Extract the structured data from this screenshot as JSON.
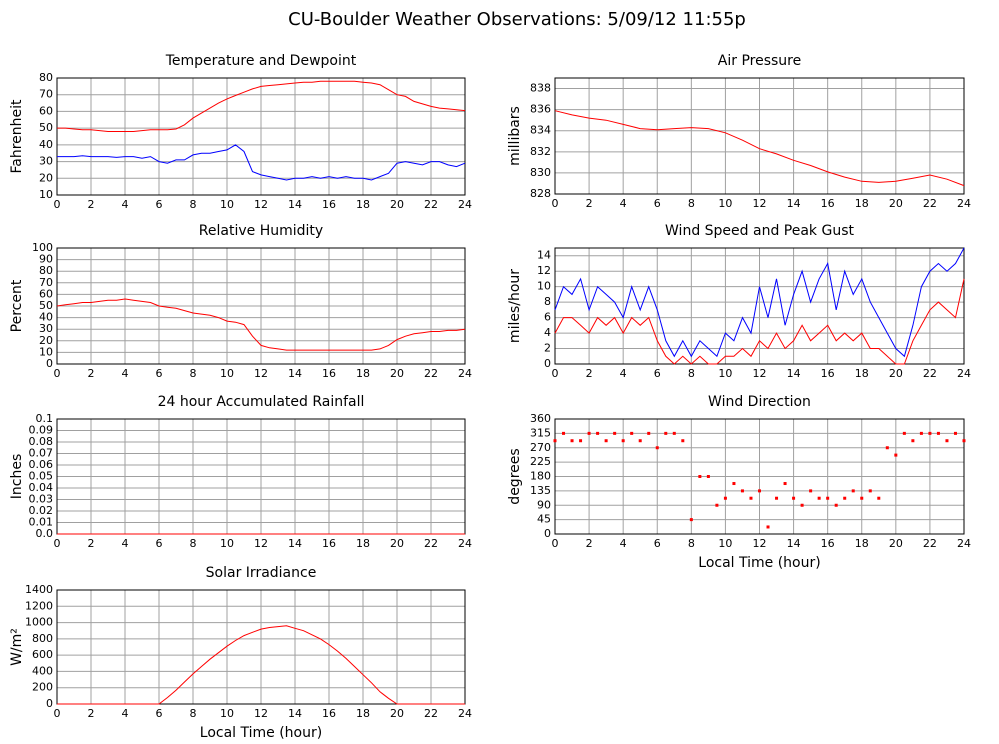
{
  "title": "CU-Boulder Weather Observations: 5/09/12 11:55p",
  "chart_data": [
    {
      "type": "line",
      "title": "Temperature and Dewpoint",
      "ylabel": "Fahrenheit",
      "x": [
        0,
        0.5,
        1,
        1.5,
        2,
        2.5,
        3,
        3.5,
        4,
        4.5,
        5,
        5.5,
        6,
        6.5,
        7,
        7.5,
        8,
        8.5,
        9,
        9.5,
        10,
        10.5,
        11,
        11.5,
        12,
        12.5,
        13,
        13.5,
        14,
        14.5,
        15,
        15.5,
        16,
        16.5,
        17,
        17.5,
        18,
        18.5,
        19,
        19.5,
        20,
        20.5,
        21,
        21.5,
        22,
        22.5,
        23,
        23.5,
        24
      ],
      "series": [
        {
          "color": "#ff0000",
          "values": [
            50,
            50,
            49.5,
            49,
            49,
            48.5,
            48,
            48,
            48,
            48,
            48.5,
            49,
            49,
            49,
            49.5,
            52,
            56,
            59,
            62,
            65,
            67.5,
            69.5,
            71.5,
            73.5,
            75,
            75.5,
            76,
            76.5,
            77,
            77.5,
            77.5,
            78,
            78,
            78,
            78,
            78,
            77.5,
            77,
            76,
            73,
            70,
            69,
            66,
            64.5,
            63,
            62,
            61.5,
            61,
            60.5
          ]
        },
        {
          "color": "#0000ff",
          "values": [
            33,
            33,
            33,
            33.5,
            33,
            33,
            33,
            32.5,
            33,
            33,
            32,
            33,
            30,
            29,
            31,
            31,
            34,
            35,
            35,
            36,
            37,
            40,
            36,
            24,
            22,
            21,
            20,
            19,
            20,
            20,
            21,
            20,
            21,
            20,
            21,
            20,
            20,
            19,
            21,
            23,
            29,
            30,
            29,
            28,
            30,
            30,
            28,
            27,
            29
          ]
        }
      ],
      "xlim": [
        0,
        24
      ],
      "xticks": [
        0,
        2,
        4,
        6,
        8,
        10,
        12,
        14,
        16,
        18,
        20,
        22,
        24
      ],
      "ylim": [
        10,
        80
      ],
      "yticks": [
        10,
        20,
        30,
        40,
        50,
        60,
        70,
        80
      ],
      "grid": true
    },
    {
      "type": "line",
      "title": "Air Pressure",
      "ylabel": "millibars",
      "x": [
        0,
        1,
        2,
        3,
        4,
        5,
        6,
        7,
        8,
        9,
        10,
        11,
        12,
        13,
        14,
        15,
        16,
        17,
        18,
        19,
        20,
        21,
        22,
        23,
        24
      ],
      "series": [
        {
          "color": "#ff0000",
          "values": [
            835.9,
            835.5,
            835.2,
            835,
            834.6,
            834.2,
            834.1,
            834.2,
            834.3,
            834.2,
            833.8,
            833.1,
            832.3,
            831.8,
            831.2,
            830.7,
            830.1,
            829.6,
            829.2,
            829.1,
            829.2,
            829.5,
            829.8,
            829.4,
            828.8
          ]
        }
      ],
      "xlim": [
        0,
        24
      ],
      "xticks": [
        0,
        2,
        4,
        6,
        8,
        10,
        12,
        14,
        16,
        18,
        20,
        22,
        24
      ],
      "ylim": [
        828,
        839
      ],
      "yticks": [
        828,
        830,
        832,
        834,
        836,
        838
      ],
      "grid": true
    },
    {
      "type": "line",
      "title": "Relative Humidity",
      "ylabel": "Percent",
      "x": [
        0,
        0.5,
        1,
        1.5,
        2,
        2.5,
        3,
        3.5,
        4,
        4.5,
        5,
        5.5,
        6,
        6.5,
        7,
        7.5,
        8,
        8.5,
        9,
        9.5,
        10,
        10.5,
        11,
        11.5,
        12,
        12.5,
        13,
        13.5,
        14,
        14.5,
        15,
        15.5,
        16,
        16.5,
        17,
        17.5,
        18,
        18.5,
        19,
        19.5,
        20,
        20.5,
        21,
        21.5,
        22,
        22.5,
        23,
        23.5,
        24
      ],
      "series": [
        {
          "color": "#ff0000",
          "values": [
            50,
            51,
            52,
            53,
            53,
            54,
            55,
            55,
            56,
            55,
            54,
            53,
            50,
            49,
            48,
            46,
            44,
            43,
            42,
            40,
            37,
            36,
            34,
            24,
            16,
            14,
            13,
            12,
            12,
            12,
            12,
            12,
            12,
            12,
            12,
            12,
            12,
            12,
            13,
            16,
            21,
            24,
            26,
            27,
            28,
            28,
            29,
            29,
            30
          ]
        }
      ],
      "xlim": [
        0,
        24
      ],
      "xticks": [
        0,
        2,
        4,
        6,
        8,
        10,
        12,
        14,
        16,
        18,
        20,
        22,
        24
      ],
      "ylim": [
        0,
        100
      ],
      "yticks": [
        0,
        10,
        20,
        30,
        40,
        50,
        60,
        70,
        80,
        90,
        100
      ],
      "grid": true
    },
    {
      "type": "line",
      "title": "Wind Speed and Peak Gust",
      "ylabel": "miles/hour",
      "x": [
        0,
        0.5,
        1,
        1.5,
        2,
        2.5,
        3,
        3.5,
        4,
        4.5,
        5,
        5.5,
        6,
        6.5,
        7,
        7.5,
        8,
        8.5,
        9,
        9.5,
        10,
        10.5,
        11,
        11.5,
        12,
        12.5,
        13,
        13.5,
        14,
        14.5,
        15,
        15.5,
        16,
        16.5,
        17,
        17.5,
        18,
        18.5,
        19,
        19.5,
        20,
        20.5,
        21,
        21.5,
        22,
        22.5,
        23,
        23.5,
        24
      ],
      "series": [
        {
          "color": "#0000ff",
          "values": [
            7,
            10,
            9,
            11,
            7,
            10,
            9,
            8,
            6,
            10,
            7,
            10,
            7,
            3,
            1,
            3,
            1,
            3,
            2,
            1,
            4,
            3,
            6,
            4,
            10,
            6,
            11,
            5,
            9,
            12,
            8,
            11,
            13,
            7,
            12,
            9,
            11,
            8,
            6,
            4,
            2,
            1,
            5,
            10,
            12,
            13,
            12,
            13,
            15
          ]
        },
        {
          "color": "#ff0000",
          "values": [
            4,
            6,
            6,
            5,
            4,
            6,
            5,
            6,
            4,
            6,
            5,
            6,
            3,
            1,
            0,
            1,
            0,
            1,
            0,
            0,
            1,
            1,
            2,
            1,
            3,
            2,
            4,
            2,
            3,
            5,
            3,
            4,
            5,
            3,
            4,
            3,
            4,
            2,
            2,
            1,
            0,
            0,
            3,
            5,
            7,
            8,
            7,
            6,
            11
          ]
        }
      ],
      "xlim": [
        0,
        24
      ],
      "xticks": [
        0,
        2,
        4,
        6,
        8,
        10,
        12,
        14,
        16,
        18,
        20,
        22,
        24
      ],
      "ylim": [
        0,
        15
      ],
      "yticks": [
        0,
        2,
        4,
        6,
        8,
        10,
        12,
        14
      ],
      "grid": true
    },
    {
      "type": "line",
      "title": "24 hour Accumulated Rainfall",
      "ylabel": "Inches",
      "x": [
        0,
        24
      ],
      "series": [
        {
          "color": "#ff0000",
          "values": [
            0,
            0
          ]
        }
      ],
      "xlim": [
        0,
        24
      ],
      "xticks": [
        0,
        2,
        4,
        6,
        8,
        10,
        12,
        14,
        16,
        18,
        20,
        22,
        24
      ],
      "ylim": [
        0,
        0.1
      ],
      "yticks": [
        {
          "value": 0,
          "label": "0.0"
        },
        0.01,
        0.02,
        0.03,
        0.04,
        0.05,
        0.06,
        0.07,
        0.08,
        0.09,
        {
          "value": 0.1,
          "label": "0.1"
        }
      ],
      "grid": true
    },
    {
      "type": "scatter",
      "title": "Wind Direction",
      "ylabel": "degrees",
      "xlabel": "Local Time (hour)",
      "x": [
        0,
        0.5,
        1,
        1.5,
        2,
        2.5,
        3,
        3.5,
        4,
        4.5,
        5,
        5.5,
        6,
        6.5,
        7,
        7.5,
        8,
        8.5,
        9,
        9.5,
        10,
        10.5,
        11,
        11.5,
        12,
        12.5,
        13,
        13.5,
        14,
        14.5,
        15,
        15.5,
        16,
        16.5,
        17,
        17.5,
        18,
        18.5,
        19,
        19.5,
        20,
        20.5,
        21,
        21.5,
        22,
        22.5,
        23,
        23.5,
        24
      ],
      "series": [
        {
          "color": "#ff0000",
          "values": [
            292,
            315,
            292,
            292,
            315,
            315,
            292,
            315,
            292,
            315,
            292,
            315,
            270,
            315,
            315,
            292,
            45,
            180,
            180,
            90,
            112,
            158,
            135,
            112,
            135,
            22,
            112,
            158,
            112,
            90,
            135,
            112,
            112,
            90,
            112,
            135,
            112,
            135,
            112,
            270,
            247,
            315,
            292,
            315,
            315,
            315,
            292,
            315,
            292
          ]
        }
      ],
      "xlim": [
        0,
        24
      ],
      "xticks": [
        0,
        2,
        4,
        6,
        8,
        10,
        12,
        14,
        16,
        18,
        20,
        22,
        24
      ],
      "ylim": [
        0,
        360
      ],
      "yticks": [
        0,
        45,
        90,
        135,
        180,
        225,
        270,
        315,
        360
      ],
      "grid": true
    },
    {
      "type": "line",
      "title": "Solar Irradiance",
      "ylabel": "W/m²",
      "xlabel": "Local Time (hour)",
      "x": [
        0,
        0.5,
        1,
        1.5,
        2,
        2.5,
        3,
        3.5,
        4,
        4.5,
        5,
        5.5,
        6,
        6.5,
        7,
        7.5,
        8,
        8.5,
        9,
        9.5,
        10,
        10.5,
        11,
        11.5,
        12,
        12.5,
        13,
        13.5,
        14,
        14.5,
        15,
        15.5,
        16,
        16.5,
        17,
        17.5,
        18,
        18.5,
        19,
        19.5,
        20,
        20.5,
        21,
        21.5,
        22,
        22.5,
        23,
        23.5,
        24
      ],
      "series": [
        {
          "color": "#ff0000",
          "values": [
            0,
            0,
            0,
            0,
            0,
            0,
            0,
            0,
            0,
            0,
            0,
            0,
            0,
            80,
            170,
            270,
            370,
            460,
            550,
            630,
            710,
            780,
            840,
            880,
            920,
            940,
            950,
            960,
            930,
            900,
            850,
            800,
            730,
            650,
            560,
            460,
            360,
            260,
            150,
            70,
            0,
            0,
            0,
            0,
            0,
            0,
            0,
            0,
            0
          ]
        }
      ],
      "xlim": [
        0,
        24
      ],
      "xticks": [
        0,
        2,
        4,
        6,
        8,
        10,
        12,
        14,
        16,
        18,
        20,
        22,
        24
      ],
      "ylim": [
        0,
        1400
      ],
      "yticks": [
        0,
        200,
        400,
        600,
        800,
        1000,
        1200,
        1400
      ],
      "grid": true
    }
  ]
}
